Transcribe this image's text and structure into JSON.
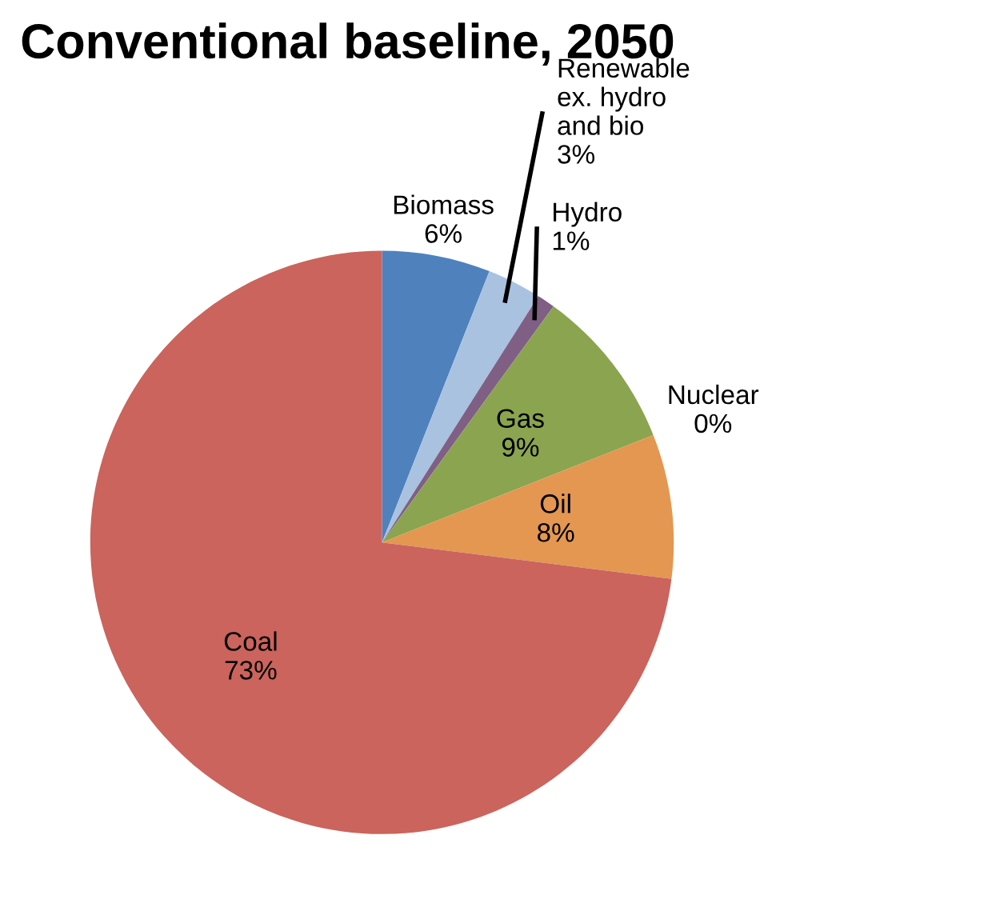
{
  "chart_data": {
    "type": "pie",
    "title": "Conventional baseline, 2050",
    "categories": [
      "Biomass",
      "Renewable\nex. hydro\nand bio",
      "Hydro",
      "Gas",
      "Nuclear",
      "Oil",
      "Coal"
    ],
    "values": [
      6,
      3,
      1,
      9,
      0,
      8,
      73
    ],
    "value_labels": [
      "6%",
      "3%",
      "1%",
      "9%",
      "0%",
      "8%",
      "73%"
    ],
    "colors": [
      "#4f81bd",
      "#a9c2e0",
      "#7f6084",
      "#8ba44f",
      "#4bacc6",
      "#e39751",
      "#cb645c"
    ],
    "legend": false
  }
}
